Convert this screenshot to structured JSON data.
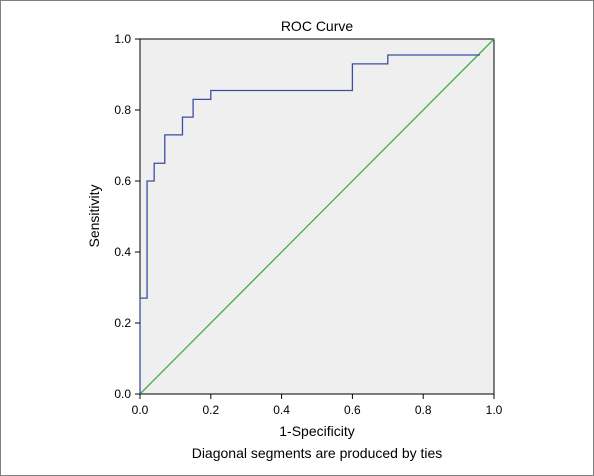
{
  "chart_data": {
    "type": "line",
    "title": "ROC Curve",
    "xlabel": "1-Specificity",
    "ylabel": "Sensitivity",
    "footnote": "Diagonal segments are produced by ties",
    "xlim": [
      0.0,
      1.0
    ],
    "ylim": [
      0.0,
      1.0
    ],
    "xticks": [
      "0.0",
      "0.2",
      "0.4",
      "0.6",
      "0.8",
      "1.0"
    ],
    "yticks": [
      "0.0",
      "0.2",
      "0.4",
      "0.6",
      "0.8",
      "1.0"
    ],
    "grid": false,
    "series": [
      {
        "color": "#3a4fa0",
        "x": [
          0.0,
          0.0,
          0.02,
          0.02,
          0.04,
          0.04,
          0.07,
          0.07,
          0.12,
          0.12,
          0.15,
          0.15,
          0.2,
          0.2,
          0.6,
          0.6,
          0.7,
          0.7,
          0.96
        ],
        "y": [
          0.0,
          0.27,
          0.27,
          0.6,
          0.6,
          0.65,
          0.65,
          0.73,
          0.73,
          0.78,
          0.78,
          0.83,
          0.83,
          0.855,
          0.855,
          0.93,
          0.93,
          0.955,
          0.955
        ]
      },
      {
        "color": "#3cb24a",
        "x": [
          0.0,
          1.0
        ],
        "y": [
          0.0,
          1.0
        ]
      }
    ]
  }
}
